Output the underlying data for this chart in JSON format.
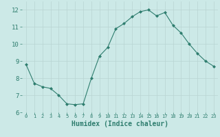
{
  "x": [
    0,
    1,
    2,
    3,
    4,
    5,
    6,
    7,
    8,
    9,
    10,
    11,
    12,
    13,
    14,
    15,
    16,
    17,
    18,
    19,
    20,
    21,
    22,
    23
  ],
  "y": [
    8.8,
    7.7,
    7.5,
    7.4,
    7.0,
    6.5,
    6.45,
    6.5,
    8.0,
    9.3,
    9.8,
    10.9,
    11.2,
    11.6,
    11.9,
    12.0,
    11.65,
    11.85,
    11.1,
    10.65,
    10.0,
    9.45,
    9.0,
    8.7
  ],
  "line_color": "#2e7d6e",
  "marker": "D",
  "marker_size": 2.0,
  "bg_color": "#cce9e7",
  "grid_color": "#b8d4d2",
  "xlabel": "Humidex (Indice chaleur)",
  "ylim": [
    6,
    12.5
  ],
  "xlim": [
    -0.5,
    23.5
  ],
  "yticks": [
    6,
    7,
    8,
    9,
    10,
    11,
    12
  ],
  "xticks": [
    0,
    1,
    2,
    3,
    4,
    5,
    6,
    7,
    8,
    9,
    10,
    11,
    12,
    13,
    14,
    15,
    16,
    17,
    18,
    19,
    20,
    21,
    22,
    23
  ],
  "label_color": "#2e7d6e",
  "tick_color": "#2e7d6e",
  "xlabel_fontsize": 7.0,
  "ytick_fontsize": 6.5,
  "xtick_fontsize": 5.0
}
